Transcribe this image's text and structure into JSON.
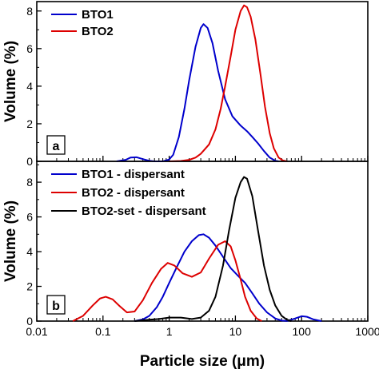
{
  "chart_data": [
    {
      "panel": "a",
      "type": "line",
      "xscale": "log",
      "xlim": [
        0.01,
        1000
      ],
      "ylim": [
        0,
        8.5
      ],
      "yticks": [
        0,
        2,
        4,
        6,
        8
      ],
      "ylabel": "Volume (%)",
      "series": [
        {
          "name": "BTO1",
          "color": "#0000cc",
          "points": [
            [
              0.16,
              0.0
            ],
            [
              0.22,
              0.08
            ],
            [
              0.26,
              0.2
            ],
            [
              0.32,
              0.22
            ],
            [
              0.4,
              0.12
            ],
            [
              0.5,
              0.03
            ],
            [
              0.6,
              0.0
            ],
            [
              0.8,
              0.0
            ],
            [
              1.0,
              0.1
            ],
            [
              1.15,
              0.35
            ],
            [
              1.4,
              1.3
            ],
            [
              1.7,
              2.8
            ],
            [
              2.0,
              4.3
            ],
            [
              2.5,
              6.1
            ],
            [
              3.0,
              7.1
            ],
            [
              3.3,
              7.3
            ],
            [
              3.8,
              7.1
            ],
            [
              4.5,
              6.3
            ],
            [
              5.5,
              4.8
            ],
            [
              7.0,
              3.3
            ],
            [
              9.0,
              2.4
            ],
            [
              12.0,
              1.9
            ],
            [
              15.0,
              1.6
            ],
            [
              18.0,
              1.3
            ],
            [
              22.0,
              0.95
            ],
            [
              27.0,
              0.55
            ],
            [
              33.0,
              0.2
            ],
            [
              40.0,
              0.03
            ],
            [
              45.0,
              0.0
            ]
          ]
        },
        {
          "name": "BTO2",
          "color": "#dd0000",
          "points": [
            [
              1.0,
              0.0
            ],
            [
              1.5,
              0.02
            ],
            [
              2.0,
              0.08
            ],
            [
              2.5,
              0.2
            ],
            [
              3.0,
              0.4
            ],
            [
              4.0,
              0.9
            ],
            [
              5.0,
              1.7
            ],
            [
              6.0,
              2.8
            ],
            [
              7.0,
              4.0
            ],
            [
              8.5,
              5.6
            ],
            [
              10.0,
              7.0
            ],
            [
              12.0,
              8.0
            ],
            [
              13.5,
              8.3
            ],
            [
              15.0,
              8.2
            ],
            [
              17.0,
              7.7
            ],
            [
              20.0,
              6.5
            ],
            [
              24.0,
              4.6
            ],
            [
              28.0,
              2.9
            ],
            [
              33.0,
              1.5
            ],
            [
              38.0,
              0.7
            ],
            [
              45.0,
              0.2
            ],
            [
              52.0,
              0.05
            ],
            [
              60.0,
              0.0
            ]
          ]
        }
      ]
    },
    {
      "panel": "b",
      "type": "line",
      "xscale": "log",
      "xlim": [
        0.01,
        1000
      ],
      "ylim": [
        0,
        9.2
      ],
      "yticks": [
        0,
        2,
        4,
        6,
        8
      ],
      "ylabel": "Volume (%)",
      "xlabel": "Particle size (μm)",
      "xtick_labels": [
        "0.01",
        "0.1",
        "1",
        "10",
        "100",
        "1000"
      ],
      "series": [
        {
          "name": "BTO1 - dispersant",
          "color": "#0000cc",
          "points": [
            [
              0.3,
              0.0
            ],
            [
              0.4,
              0.1
            ],
            [
              0.5,
              0.3
            ],
            [
              0.65,
              0.8
            ],
            [
              0.8,
              1.4
            ],
            [
              1.0,
              2.2
            ],
            [
              1.3,
              3.1
            ],
            [
              1.7,
              4.0
            ],
            [
              2.2,
              4.6
            ],
            [
              2.8,
              4.95
            ],
            [
              3.3,
              5.0
            ],
            [
              4.0,
              4.8
            ],
            [
              5.0,
              4.35
            ],
            [
              6.5,
              3.7
            ],
            [
              8.5,
              3.05
            ],
            [
              11.0,
              2.6
            ],
            [
              14.0,
              2.2
            ],
            [
              18.0,
              1.6
            ],
            [
              23.0,
              1.0
            ],
            [
              30.0,
              0.5
            ],
            [
              40.0,
              0.15
            ],
            [
              50.0,
              0.03
            ],
            [
              60.0,
              0.01
            ],
            [
              80.0,
              0.15
            ],
            [
              100.0,
              0.28
            ],
            [
              120.0,
              0.25
            ],
            [
              150.0,
              0.1
            ],
            [
              200.0,
              0.0
            ]
          ]
        },
        {
          "name": "BTO2 - dispersant",
          "color": "#dd0000",
          "points": [
            [
              0.035,
              0.0
            ],
            [
              0.05,
              0.3
            ],
            [
              0.07,
              0.9
            ],
            [
              0.09,
              1.3
            ],
            [
              0.11,
              1.4
            ],
            [
              0.14,
              1.25
            ],
            [
              0.18,
              0.85
            ],
            [
              0.23,
              0.5
            ],
            [
              0.3,
              0.55
            ],
            [
              0.4,
              1.2
            ],
            [
              0.55,
              2.2
            ],
            [
              0.75,
              3.0
            ],
            [
              0.95,
              3.35
            ],
            [
              1.2,
              3.2
            ],
            [
              1.6,
              2.75
            ],
            [
              2.2,
              2.55
            ],
            [
              3.0,
              2.8
            ],
            [
              4.0,
              3.6
            ],
            [
              5.5,
              4.4
            ],
            [
              7.0,
              4.6
            ],
            [
              8.5,
              4.3
            ],
            [
              10.0,
              3.5
            ],
            [
              12.0,
              2.4
            ],
            [
              14.0,
              1.4
            ],
            [
              17.0,
              0.6
            ],
            [
              21.0,
              0.15
            ],
            [
              25.0,
              0.0
            ]
          ]
        },
        {
          "name": "BTO2-set - dispersant",
          "color": "#000000",
          "points": [
            [
              0.3,
              0.0
            ],
            [
              0.5,
              0.08
            ],
            [
              0.7,
              0.12
            ],
            [
              1.0,
              0.2
            ],
            [
              1.5,
              0.2
            ],
            [
              2.2,
              0.12
            ],
            [
              3.0,
              0.2
            ],
            [
              4.0,
              0.6
            ],
            [
              5.0,
              1.4
            ],
            [
              6.5,
              3.2
            ],
            [
              8.0,
              5.2
            ],
            [
              10.0,
              7.1
            ],
            [
              12.0,
              8.0
            ],
            [
              13.5,
              8.3
            ],
            [
              15.0,
              8.2
            ],
            [
              18.0,
              7.2
            ],
            [
              22.0,
              5.2
            ],
            [
              27.0,
              3.2
            ],
            [
              33.0,
              1.8
            ],
            [
              40.0,
              0.9
            ],
            [
              50.0,
              0.3
            ],
            [
              60.0,
              0.08
            ],
            [
              70.0,
              0.0
            ]
          ]
        }
      ]
    }
  ],
  "panel_labels": {
    "a": "a",
    "b": "b"
  },
  "tick_labels": {
    "y_top": [
      "0",
      "2",
      "4",
      "6",
      "8"
    ],
    "y_bottom": [
      "0",
      "2",
      "4",
      "6",
      "8"
    ],
    "x": [
      "0.01",
      "0.1",
      "1",
      "10",
      "100",
      "1000"
    ]
  }
}
